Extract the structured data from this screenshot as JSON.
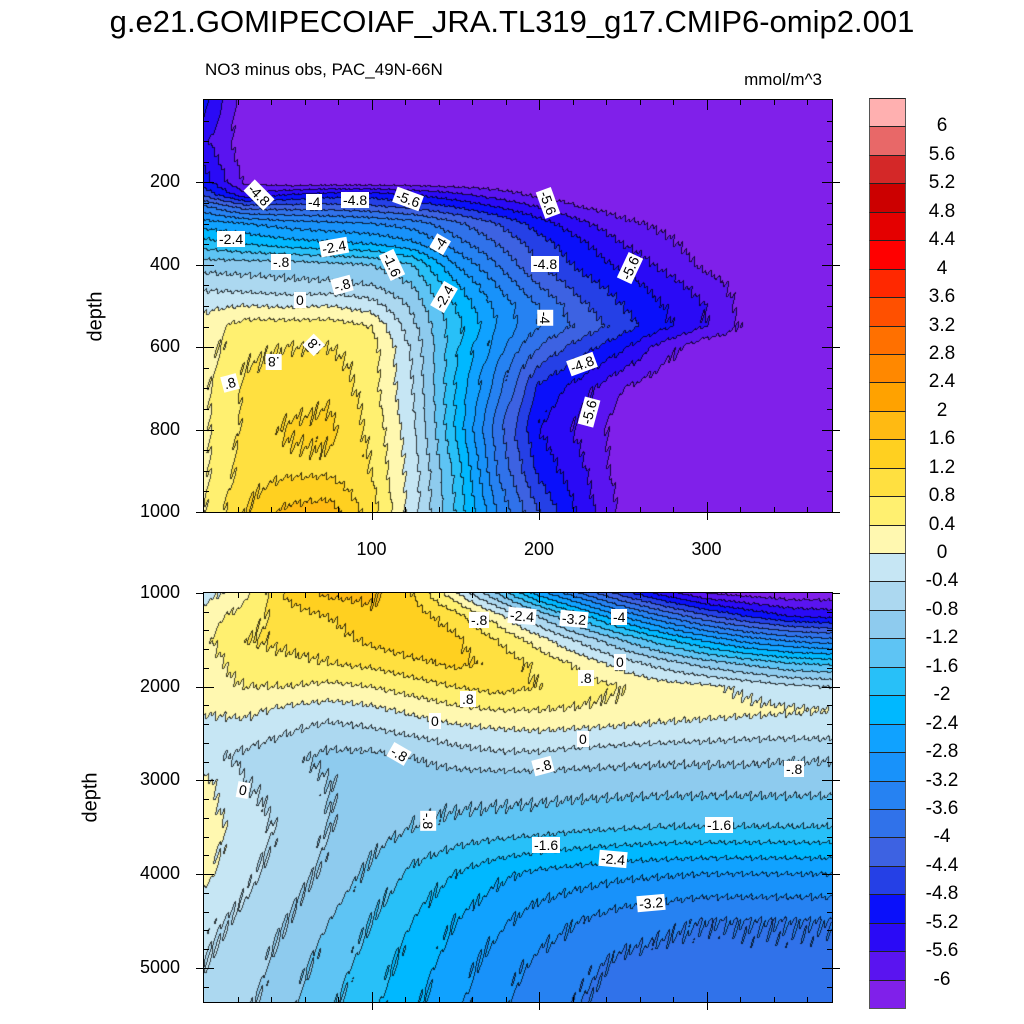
{
  "chart_data": [
    {
      "type": "heatmap",
      "title": "g.e21.GOMIPECOIAF_JRA.TL319_g17.CMIP6-omip2.001",
      "subtitle": "NO3 minus obs, PAC_49N-66N",
      "units": "mmol/m^3",
      "ylabel": "depth",
      "xlabel": "",
      "xlim": [
        0,
        375
      ],
      "ylim": [
        1000,
        0
      ],
      "xticks": [
        "100",
        "200",
        "300"
      ],
      "yticks": [
        "200",
        "400",
        "600",
        "800",
        "1000"
      ],
      "x": [
        0,
        25,
        50,
        75,
        100,
        125,
        150,
        175,
        200,
        225,
        250,
        275,
        300,
        325,
        350,
        375
      ],
      "depth": [
        0,
        100,
        200,
        230,
        260,
        300,
        350,
        400,
        450,
        500,
        550,
        600,
        700,
        800,
        900,
        1000
      ],
      "values": [
        [
          -5.0,
          -6.3,
          -6.3,
          -6.3,
          -6.3,
          -6.3,
          -6.3,
          -6.3,
          -6.3,
          -6.3,
          -6.3,
          -6.3,
          -6.3,
          -6.3,
          -6.3,
          -6.3
        ],
        [
          -5.5,
          -6.3,
          -6.3,
          -6.3,
          -6.3,
          -6.3,
          -6.3,
          -6.3,
          -6.3,
          -6.3,
          -6.3,
          -6.3,
          -6.3,
          -6.3,
          -6.3,
          -6.3
        ],
        [
          -5.0,
          -6.1,
          -6.3,
          -6.3,
          -6.3,
          -6.3,
          -6.3,
          -6.3,
          -6.3,
          -6.3,
          -6.3,
          -6.3,
          -6.3,
          -6.3,
          -6.3,
          -6.3
        ],
        [
          -4.5,
          -5.5,
          -5.2,
          -5.0,
          -5.0,
          -5.2,
          -5.5,
          -5.8,
          -6.1,
          -6.3,
          -6.3,
          -6.3,
          -6.3,
          -6.3,
          -6.3,
          -6.3
        ],
        [
          -3.5,
          -4.2,
          -4.2,
          -4.2,
          -4.3,
          -4.5,
          -4.8,
          -5.2,
          -5.6,
          -6.0,
          -6.2,
          -6.3,
          -6.3,
          -6.3,
          -6.3,
          -6.3
        ],
        [
          -2.6,
          -2.8,
          -3.0,
          -3.1,
          -3.2,
          -3.4,
          -3.9,
          -4.4,
          -5.0,
          -5.5,
          -5.9,
          -6.1,
          -6.3,
          -6.3,
          -6.3,
          -6.3
        ],
        [
          -1.8,
          -2.0,
          -2.2,
          -2.3,
          -2.4,
          -2.7,
          -3.4,
          -4.0,
          -4.6,
          -5.1,
          -5.6,
          -5.9,
          -6.2,
          -6.3,
          -6.3,
          -6.3
        ],
        [
          -1.0,
          -1.0,
          -1.0,
          -1.1,
          -1.2,
          -1.6,
          -2.8,
          -3.6,
          -4.4,
          -4.9,
          -5.3,
          -5.7,
          -6.1,
          -6.3,
          -6.3,
          -6.3
        ],
        [
          -0.5,
          -0.6,
          -0.7,
          -0.7,
          -0.8,
          -1.2,
          -2.3,
          -3.2,
          -4.0,
          -4.6,
          -5.0,
          -5.4,
          -5.8,
          -6.2,
          -6.3,
          -6.3
        ],
        [
          -0.1,
          0.0,
          -0.05,
          0.0,
          -0.2,
          -0.9,
          -2.0,
          -2.9,
          -3.6,
          -4.3,
          -4.8,
          -5.2,
          -5.6,
          -6.2,
          -6.3,
          -6.3
        ],
        [
          0.2,
          0.6,
          0.6,
          0.6,
          0.4,
          -0.7,
          -1.8,
          -2.8,
          -3.6,
          -4.1,
          -4.6,
          -5.1,
          -5.6,
          -6.1,
          -6.3,
          -6.3
        ],
        [
          0.2,
          0.7,
          0.8,
          0.8,
          0.6,
          -0.5,
          -1.9,
          -3.0,
          -4.0,
          -4.6,
          -5.1,
          -5.8,
          -6.3,
          -6.3,
          -6.3,
          -6.3
        ],
        [
          0.3,
          0.9,
          1.0,
          1.1,
          0.6,
          -0.4,
          -2.0,
          -3.4,
          -4.9,
          -5.4,
          -6.0,
          -6.3,
          -6.3,
          -6.3,
          -6.3,
          -6.3
        ],
        [
          0.3,
          0.9,
          1.25,
          1.3,
          0.7,
          -0.3,
          -2.0,
          -3.8,
          -5.2,
          -5.7,
          -6.2,
          -6.3,
          -6.3,
          -6.3,
          -6.3,
          -6.3
        ],
        [
          0.3,
          1.0,
          1.1,
          1.1,
          0.8,
          -0.2,
          -1.7,
          -3.6,
          -4.9,
          -5.5,
          -6.2,
          -6.3,
          -6.3,
          -6.3,
          -6.3,
          -6.3
        ],
        [
          0.4,
          1.2,
          1.7,
          1.8,
          1.0,
          -0.2,
          -1.6,
          -3.2,
          -4.4,
          -5.3,
          -6.1,
          -6.3,
          -6.3,
          -6.3,
          -6.3,
          -6.3
        ]
      ],
      "contour_labels": [
        "-4.8",
        "-4",
        "-4.8",
        "-5.6",
        "-5.6",
        "-2.4",
        "-2.4",
        "-.8",
        "-1.6",
        "-4",
        "-.8",
        "0",
        "-2.4",
        "-4.8",
        "-5.6",
        "-4",
        ".8",
        ".8",
        ".8",
        "-4.8",
        "-5.6"
      ]
    },
    {
      "type": "heatmap",
      "ylabel": "depth",
      "xlim": [
        0,
        375
      ],
      "ylim": [
        5365,
        1000
      ],
      "yticks": [
        "1000",
        "2000",
        "3000",
        "4000",
        "5000"
      ],
      "x": [
        0,
        25,
        50,
        75,
        100,
        125,
        150,
        175,
        200,
        225,
        250,
        275,
        300,
        325,
        350,
        375
      ],
      "depth": [
        1000,
        1250,
        1500,
        1750,
        2000,
        2250,
        2500,
        2750,
        3000,
        3500,
        4000,
        4500,
        5000,
        5365
      ],
      "values": [
        [
          -0.2,
          0.3,
          1.3,
          1.7,
          1.7,
          1.2,
          0.1,
          -1.2,
          -2.6,
          -3.6,
          -4.6,
          -5.4,
          -6.0,
          -6.2,
          -6.3,
          -6.3
        ],
        [
          0.2,
          0.6,
          1.0,
          1.2,
          1.5,
          1.4,
          1.0,
          0.2,
          -0.8,
          -1.8,
          -2.8,
          -3.6,
          -4.3,
          -4.8,
          -5.2,
          -5.3
        ],
        [
          0.3,
          0.8,
          0.9,
          1.0,
          1.3,
          1.5,
          1.3,
          0.8,
          0.2,
          -0.5,
          -1.2,
          -1.9,
          -2.5,
          -3.0,
          -3.3,
          -3.5
        ],
        [
          0.2,
          0.6,
          0.7,
          0.8,
          0.9,
          1.1,
          1.3,
          1.1,
          0.7,
          0.3,
          -0.2,
          -0.6,
          -1.0,
          -1.3,
          -1.6,
          -1.7
        ],
        [
          0.2,
          0.4,
          0.4,
          0.3,
          0.4,
          0.6,
          0.8,
          0.95,
          0.8,
          0.6,
          0.4,
          0.2,
          0.1,
          -0.1,
          -0.3,
          -0.4
        ],
        [
          0.05,
          0.1,
          -0.1,
          -0.2,
          -0.1,
          0.1,
          0.3,
          0.4,
          0.4,
          0.35,
          0.3,
          0.2,
          0.15,
          0.1,
          0.05,
          0.0
        ],
        [
          -0.2,
          -0.2,
          -0.4,
          -0.6,
          -0.5,
          -0.35,
          -0.2,
          -0.1,
          -0.05,
          -0.1,
          -0.15,
          -0.2,
          -0.25,
          -0.3,
          -0.3,
          -0.3
        ],
        [
          -0.3,
          -0.5,
          -0.7,
          -0.9,
          -0.9,
          -0.8,
          -0.6,
          -0.5,
          -0.5,
          -0.6,
          -0.65,
          -0.7,
          -0.7,
          -0.7,
          -0.75,
          -0.75
        ],
        [
          0.1,
          -0.4,
          -0.6,
          -0.8,
          -1.0,
          -1.0,
          -1.0,
          -1.0,
          -1.0,
          -1.0,
          -1.0,
          -1.0,
          -1.0,
          -1.0,
          -1.0,
          -1.0
        ],
        [
          0.2,
          -0.2,
          -0.5,
          -0.8,
          -1.0,
          -1.2,
          -1.3,
          -1.35,
          -1.4,
          -1.5,
          -1.55,
          -1.6,
          -1.6,
          -1.6,
          -1.6,
          -1.6
        ],
        [
          0.1,
          -0.3,
          -0.6,
          -0.9,
          -1.3,
          -1.7,
          -2.0,
          -2.3,
          -2.5,
          -2.6,
          -2.7,
          -2.75,
          -2.8,
          -2.8,
          -2.8,
          -2.8
        ],
        [
          -0.3,
          -0.5,
          -0.8,
          -1.2,
          -1.6,
          -2.0,
          -2.4,
          -2.7,
          -3.0,
          -3.2,
          -3.4,
          -3.5,
          -3.6,
          -3.6,
          -3.6,
          -3.6
        ],
        [
          -0.4,
          -0.6,
          -1.0,
          -1.4,
          -1.8,
          -2.2,
          -2.6,
          -3.0,
          -3.3,
          -3.5,
          -3.7,
          -3.75,
          -3.75,
          -3.7,
          -3.7,
          -3.7
        ],
        [
          -0.5,
          -0.7,
          -1.1,
          -1.5,
          -1.9,
          -2.3,
          -2.7,
          -3.1,
          -3.4,
          -3.6,
          -3.75,
          -3.8,
          -3.8,
          -3.75,
          -3.7,
          -3.7
        ]
      ],
      "contour_labels": [
        "-.8",
        "-2.4",
        "-3.2",
        "-4",
        "0",
        ".8",
        ".8",
        "0",
        "0",
        "-.8",
        "-.8",
        "-.8",
        "0",
        "-.8",
        "-1.6",
        "-1.6",
        "-2.4",
        "-3.2"
      ]
    }
  ],
  "colorbar": {
    "labels": [
      "6",
      "5.6",
      "5.2",
      "4.8",
      "4.4",
      "4",
      "3.6",
      "3.2",
      "2.8",
      "2.4",
      "2",
      "1.6",
      "1.2",
      "0.8",
      "0.4",
      "0",
      "-0.4",
      "-0.8",
      "-1.2",
      "-1.6",
      "-2",
      "-2.4",
      "-2.8",
      "-3.2",
      "-3.6",
      "-4",
      "-4.4",
      "-4.8",
      "-5.2",
      "-5.6",
      "-6"
    ],
    "colors_low_to_high": [
      "#8020ea",
      "#5a14f0",
      "#2a0af6",
      "#0a10fa",
      "#2540e6",
      "#3d62e2",
      "#3072ea",
      "#2682f2",
      "#1892fa",
      "#10a2ff",
      "#00b8ff",
      "#28c0f8",
      "#5ec4f4",
      "#8ecbee",
      "#acd8f0",
      "#c6e6f4",
      "#fff8b0",
      "#fff070",
      "#ffe040",
      "#ffd020",
      "#ffba12",
      "#ffa200",
      "#ff8800",
      "#ff7000",
      "#ff5000",
      "#ff2800",
      "#ff0000",
      "#e40000",
      "#cc0000",
      "#d42828",
      "#e86868",
      "#ffb0b0"
    ]
  }
}
